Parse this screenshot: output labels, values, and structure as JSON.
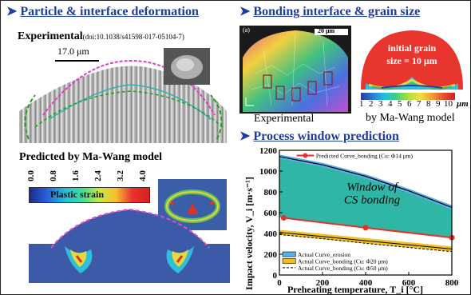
{
  "left_heading": "Particle & interface deformation",
  "right_heading": "Bonding interface & grain size",
  "window_heading": "Process window prediction",
  "experimental_label": "Experimental",
  "doi_text": "(doi:10.1038/s41598-017-05104-7)",
  "scale_bar_1": "17.0 μm",
  "predicted_label": "Predicted  by Ma-Wang model",
  "strain_ticks": [
    "0.0",
    "0.8",
    "1.6",
    "2.4",
    "3.2",
    "4.0"
  ],
  "strain_label": "Plastic strain",
  "ebsd_panel_tag": "(a)",
  "ebsd_scale": "20 μm",
  "ebsd_caption": "Experimental",
  "model_caption": "by Ma-Wang model",
  "grain_text_1": "initial grain",
  "grain_text_2": "size = 10 μm",
  "grain_ticks": [
    "1",
    "2",
    "3",
    "4",
    "5",
    "6",
    "7",
    "8",
    "9",
    "10"
  ],
  "grain_unit": "μm",
  "colors": {
    "heading": "#1f3d9a",
    "predicted": "#e8302a",
    "window": "#25b2a0",
    "critical": "#1f5fa0"
  },
  "chart_data": {
    "type": "line",
    "xlabel": "Preheating temperature, T_i [°C]",
    "ylabel": "Impact velocity, V_i [m·s⁻¹]",
    "xlim": [
      0,
      800
    ],
    "ylim": [
      0,
      1200
    ],
    "xticks": [
      "0",
      "200",
      "400",
      "600",
      "800"
    ],
    "yticks": [
      "0",
      "200",
      "400",
      "600",
      "800",
      "1000",
      "1200"
    ],
    "window_text": [
      "Window of",
      "CS bonding"
    ],
    "legend_top": "Predicted Curve_bonding (Cu: Φ14 μm)",
    "legend_bottom": [
      "Actual Curve_erosion",
      "Actual Curve_bonding (Cu: Φ20 μm)",
      "Actual Curve_bonding (Cu: Φ50 μm)"
    ],
    "series": [
      {
        "name": "Predicted Curve_bonding (Cu: Φ14 μm)",
        "x": [
          20,
          400,
          800
        ],
        "y": [
          550,
          455,
          360
        ]
      },
      {
        "name": "Actual Curve_erosion",
        "x": [
          0,
          200,
          400,
          600,
          800
        ],
        "y": [
          1140,
          1060,
          950,
          810,
          650
        ]
      },
      {
        "name": "Actual Curve_bonding (Cu: Φ20 μm)",
        "x": [
          0,
          200,
          400,
          600,
          800
        ],
        "y": [
          410,
          370,
          330,
          290,
          250
        ]
      },
      {
        "name": "Actual Curve_bonding (Cu: Φ50 μm)",
        "x": [
          0,
          200,
          400,
          600,
          800
        ],
        "y": [
          390,
          350,
          305,
          265,
          225
        ]
      }
    ]
  }
}
